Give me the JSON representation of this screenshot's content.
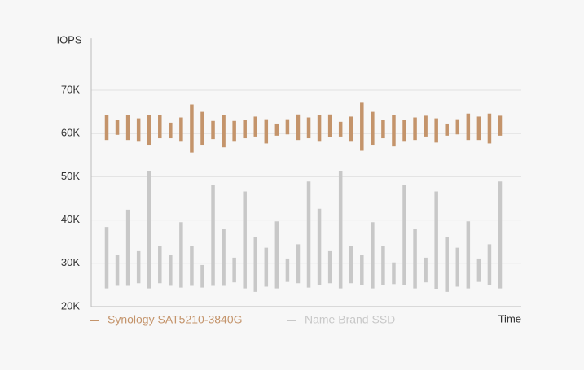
{
  "chart_data": {
    "type": "range-bar",
    "y_label": "IOPS",
    "x_label": "Time",
    "categories": [
      null,
      null,
      null,
      null,
      null,
      null,
      null,
      null,
      null,
      null,
      null,
      null,
      null,
      null,
      null,
      null,
      null,
      null,
      null,
      null,
      null,
      null,
      null,
      null,
      null,
      null,
      null,
      null,
      null,
      null,
      null,
      null,
      null,
      null,
      null,
      null,
      null,
      null
    ],
    "series": [
      {
        "name": "Synology SAT5210-3840G",
        "color": "#c4946b",
        "low": [
          58500,
          59700,
          58500,
          58100,
          57400,
          58900,
          58900,
          58100,
          55600,
          57400,
          58700,
          56800,
          58100,
          58900,
          59300,
          57700,
          59500,
          59800,
          58500,
          58900,
          58100,
          59100,
          59300,
          58100,
          56000,
          57400,
          58900,
          57000,
          58100,
          58500,
          59300,
          57900,
          59500,
          59800,
          58500,
          58500,
          57700,
          59500
        ],
        "high": [
          64300,
          63100,
          64300,
          63500,
          64300,
          64300,
          62500,
          63700,
          66700,
          65000,
          62900,
          64300,
          62900,
          63100,
          63900,
          63300,
          62300,
          63300,
          64400,
          63700,
          64300,
          64400,
          62700,
          63900,
          67100,
          65000,
          63100,
          64300,
          63100,
          63700,
          64100,
          63500,
          62300,
          63300,
          64600,
          63900,
          64600,
          64100
        ]
      },
      {
        "name": "Name Brand SSD",
        "color": "#c8c8c8",
        "low": [
          24200,
          24800,
          24800,
          25400,
          24200,
          25400,
          24800,
          24400,
          24800,
          24400,
          24800,
          24800,
          25600,
          24200,
          23400,
          24600,
          24200,
          25700,
          25400,
          24400,
          25000,
          25400,
          24200,
          25400,
          25000,
          24200,
          25000,
          25200,
          25000,
          24200,
          25600,
          24000,
          23400,
          24600,
          24200,
          25700,
          25000,
          24200
        ],
        "high": [
          38400,
          31900,
          42400,
          32800,
          51400,
          34000,
          31900,
          39500,
          34000,
          29600,
          48000,
          38000,
          31300,
          46600,
          36100,
          33600,
          39700,
          31100,
          34400,
          48900,
          42600,
          32800,
          51400,
          34000,
          31900,
          39500,
          34000,
          30200,
          48000,
          38000,
          31300,
          46600,
          36100,
          33600,
          39700,
          31100,
          34400,
          48900
        ]
      }
    ],
    "ylim": [
      20000,
      82000
    ],
    "yticks": [
      {
        "value": 20000,
        "label": "20K"
      },
      {
        "value": 30000,
        "label": "30K"
      },
      {
        "value": 40000,
        "label": "40K"
      },
      {
        "value": 50000,
        "label": "50K"
      },
      {
        "value": 60000,
        "label": "60K"
      },
      {
        "value": 70000,
        "label": "70K"
      }
    ],
    "grid": true,
    "legend": "bottom-left"
  }
}
